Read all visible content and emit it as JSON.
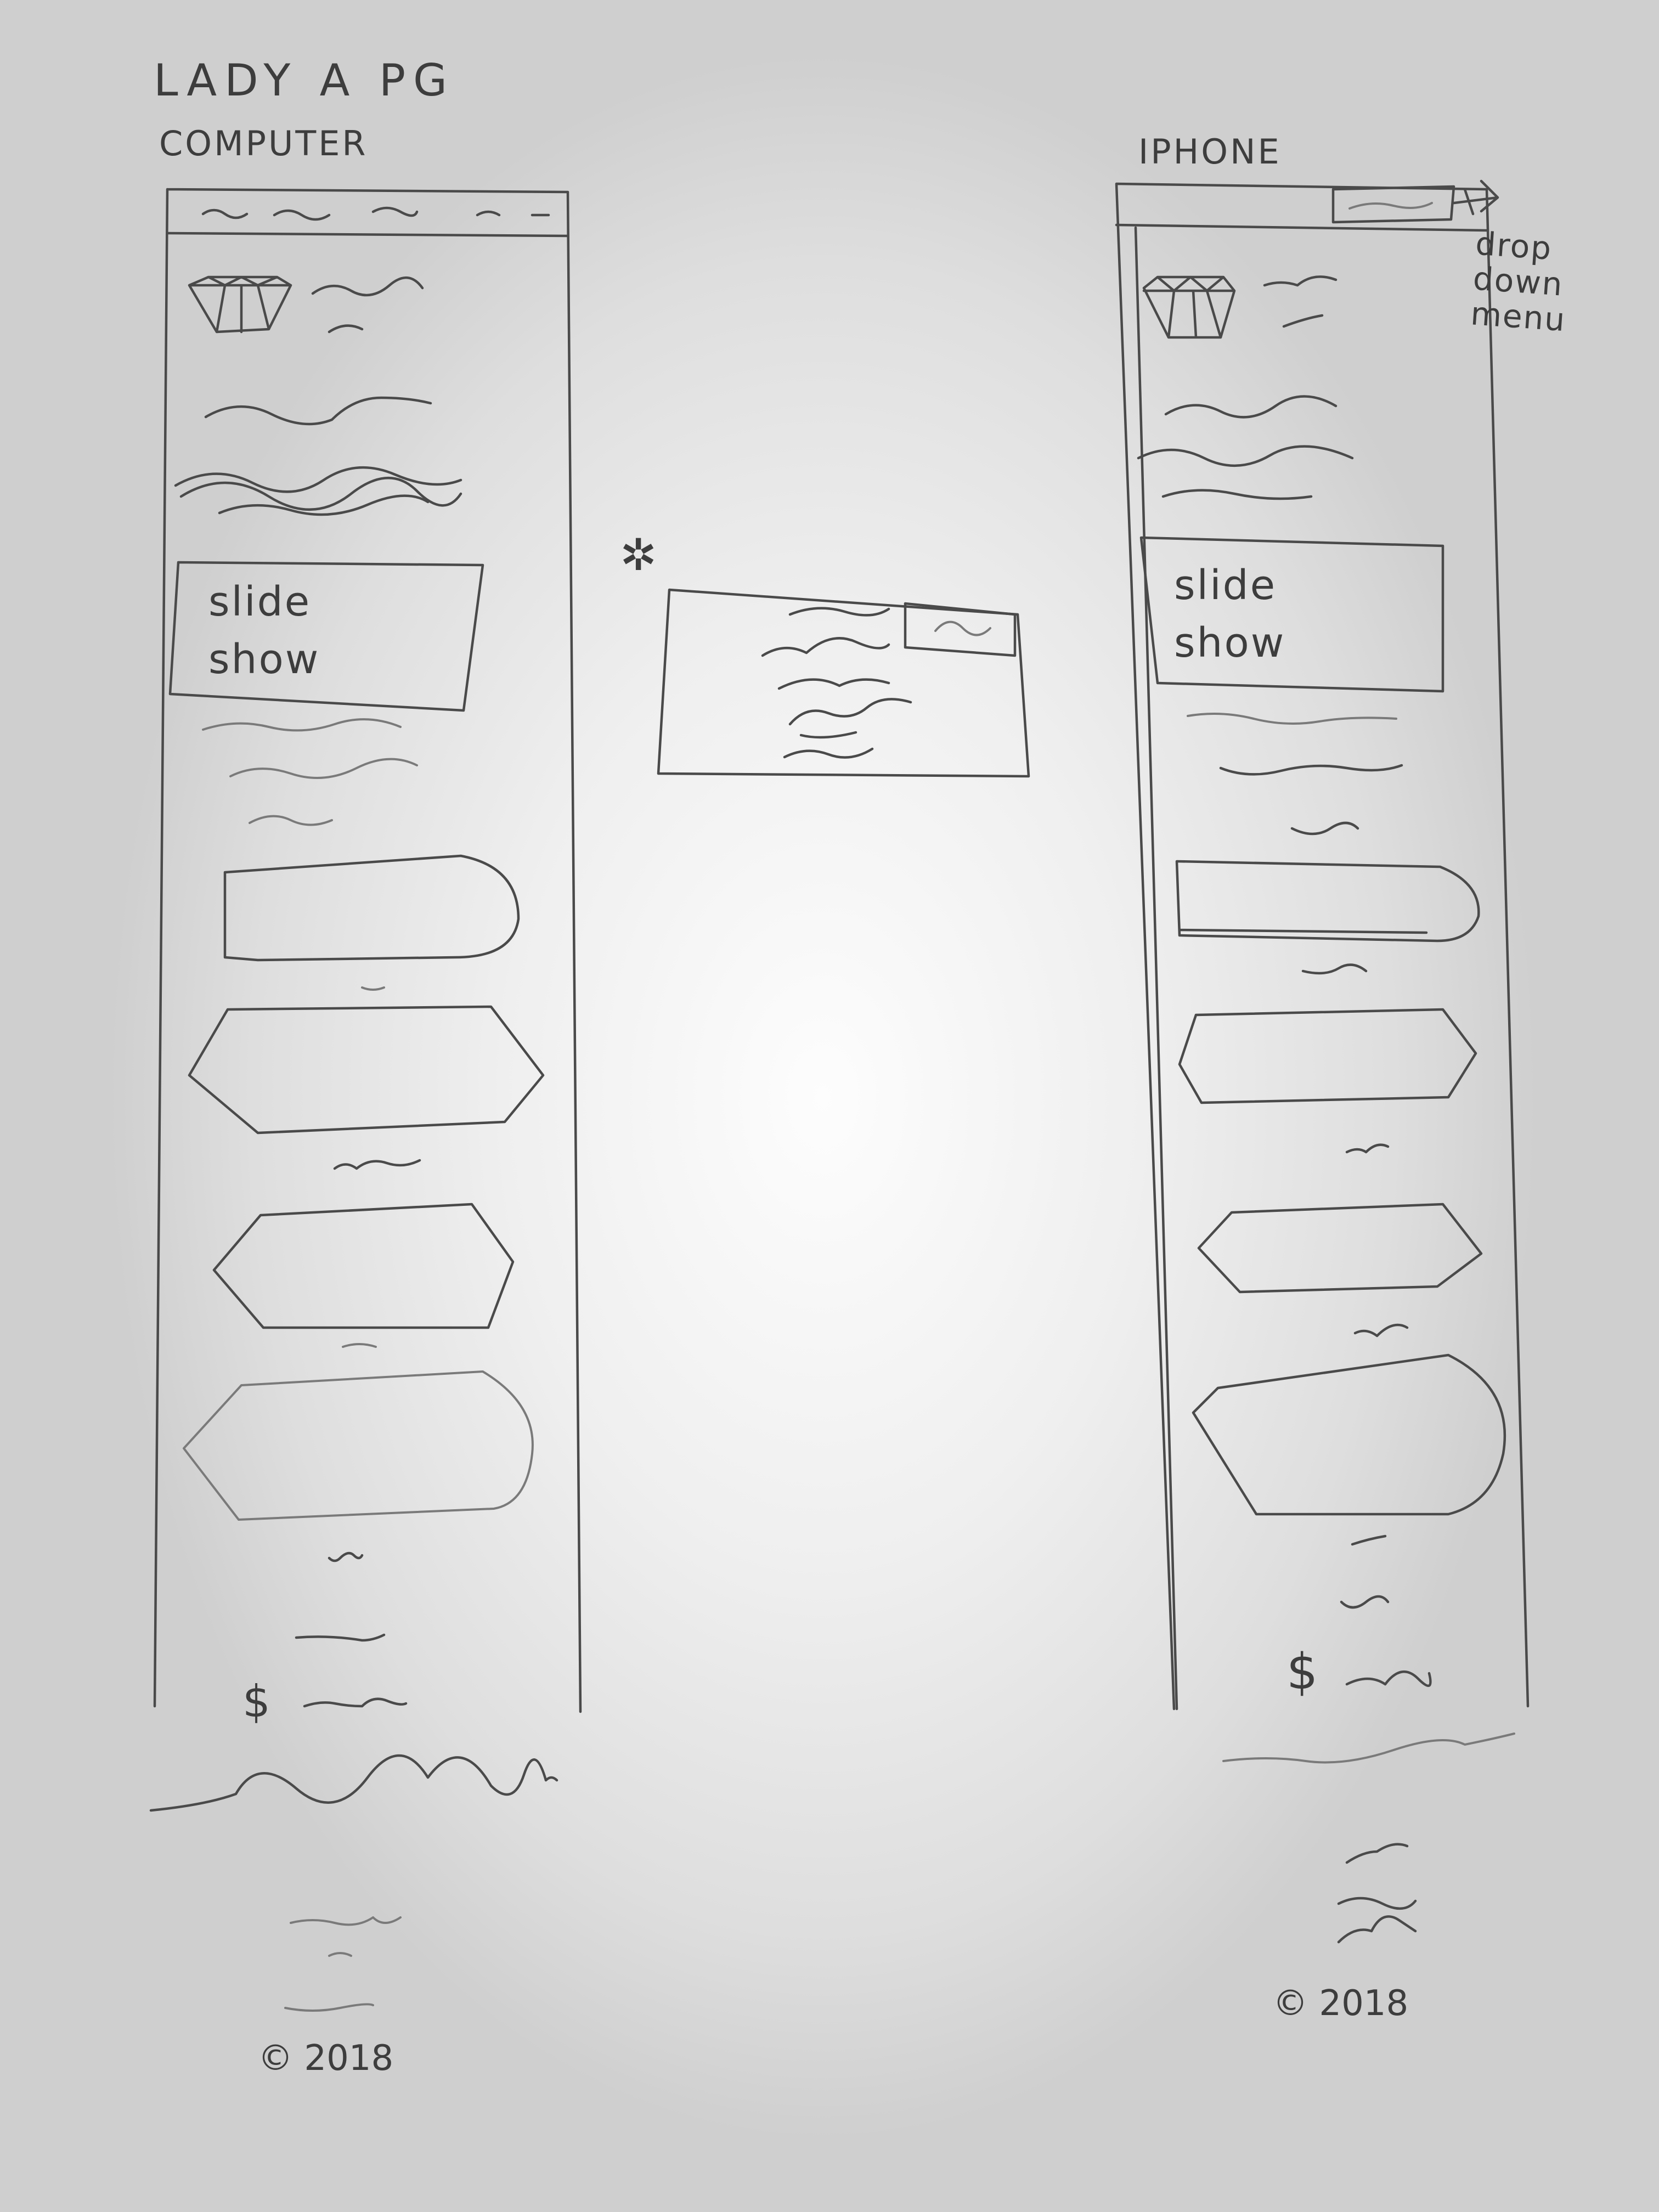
{
  "sketch": {
    "title": "LADY A PG",
    "computer_label": "COMPUTER",
    "iphone_label": "IPHONE",
    "dropdown_note": "drop down menu",
    "slideshow_label": "slide show",
    "currency_symbol": "$",
    "popup_marker": "✲",
    "desktop_copyright": "© 2018",
    "mobile_copyright": "© 2018"
  }
}
